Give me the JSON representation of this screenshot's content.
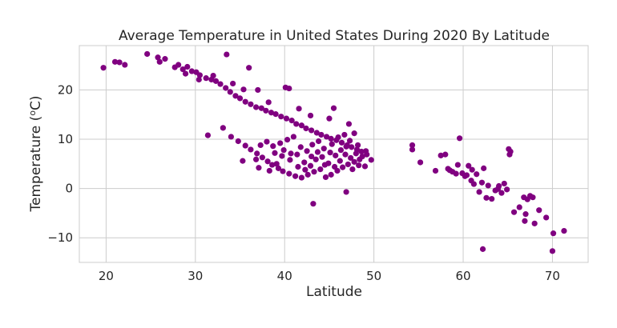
{
  "chart_data": {
    "type": "scatter",
    "title": "Average Temperature in United States During 2020 By Latitude",
    "xlabel": "Latitude",
    "ylabel": "Temperature (",
    "ylabel_super": "o",
    "ylabel_unit": "C)",
    "xlim": [
      17,
      74
    ],
    "ylim": [
      -15,
      29
    ],
    "xticks": [
      20,
      30,
      40,
      50,
      60,
      70
    ],
    "yticks": [
      -10,
      0,
      10,
      20
    ],
    "ytick_labels": [
      "−10",
      "0",
      "10",
      "20"
    ],
    "grid": true,
    "color": "#800080",
    "series": [
      {
        "points": [
          [
            19.7,
            24.5
          ],
          [
            21.0,
            25.7
          ],
          [
            21.5,
            25.6
          ],
          [
            22.1,
            25.1
          ],
          [
            24.6,
            27.3
          ],
          [
            25.8,
            26.6
          ],
          [
            26.0,
            25.7
          ],
          [
            26.6,
            26.3
          ],
          [
            27.7,
            24.6
          ],
          [
            28.1,
            25.1
          ],
          [
            28.6,
            24.2
          ],
          [
            29.1,
            24.7
          ],
          [
            29.6,
            23.8
          ],
          [
            30.1,
            23.6
          ],
          [
            30.5,
            23.0
          ],
          [
            31.2,
            22.4
          ],
          [
            31.8,
            22.1
          ],
          [
            32.3,
            21.8
          ],
          [
            32.8,
            21.2
          ],
          [
            33.4,
            20.4
          ],
          [
            33.9,
            19.6
          ],
          [
            34.5,
            18.8
          ],
          [
            35.0,
            18.3
          ],
          [
            35.6,
            17.6
          ],
          [
            36.2,
            17.1
          ],
          [
            36.8,
            16.5
          ],
          [
            37.4,
            16.3
          ],
          [
            37.9,
            15.8
          ],
          [
            38.5,
            15.4
          ],
          [
            39.0,
            15.1
          ],
          [
            39.6,
            14.6
          ],
          [
            40.2,
            14.2
          ],
          [
            40.8,
            13.8
          ],
          [
            41.3,
            13.1
          ],
          [
            41.9,
            12.8
          ],
          [
            42.4,
            12.2
          ],
          [
            43.0,
            11.8
          ],
          [
            43.6,
            11.3
          ],
          [
            44.1,
            10.9
          ],
          [
            44.7,
            10.5
          ],
          [
            45.2,
            10.1
          ],
          [
            45.8,
            9.8
          ],
          [
            46.4,
            9.3
          ],
          [
            47.0,
            8.8
          ],
          [
            47.5,
            8.4
          ],
          [
            48.1,
            7.9
          ],
          [
            48.6,
            7.5
          ],
          [
            49.2,
            6.9
          ],
          [
            49.7,
            5.8
          ],
          [
            28.9,
            23.3
          ],
          [
            30.4,
            22.1
          ],
          [
            32.0,
            22.9
          ],
          [
            33.5,
            27.2
          ],
          [
            34.2,
            21.3
          ],
          [
            35.4,
            20.1
          ],
          [
            36.0,
            24.5
          ],
          [
            37.0,
            20.0
          ],
          [
            38.2,
            17.5
          ],
          [
            40.1,
            20.5
          ],
          [
            40.5,
            20.3
          ],
          [
            41.6,
            16.2
          ],
          [
            42.9,
            14.8
          ],
          [
            45.0,
            14.2
          ],
          [
            45.5,
            16.3
          ],
          [
            47.2,
            13.1
          ],
          [
            47.8,
            11.2
          ],
          [
            33.1,
            12.3
          ],
          [
            34.0,
            10.5
          ],
          [
            34.8,
            9.6
          ],
          [
            35.6,
            8.7
          ],
          [
            36.2,
            7.9
          ],
          [
            36.9,
            7.1
          ],
          [
            37.5,
            6.3
          ],
          [
            38.1,
            5.5
          ],
          [
            38.6,
            4.8
          ],
          [
            39.3,
            4.1
          ],
          [
            39.8,
            3.5
          ],
          [
            40.5,
            3.0
          ],
          [
            41.2,
            2.5
          ],
          [
            41.9,
            2.2
          ],
          [
            42.6,
            2.8
          ],
          [
            43.3,
            3.4
          ],
          [
            44.0,
            3.9
          ],
          [
            44.6,
            2.3
          ],
          [
            45.2,
            2.8
          ],
          [
            45.9,
            3.6
          ],
          [
            46.5,
            4.3
          ],
          [
            47.1,
            4.9
          ],
          [
            47.8,
            5.4
          ],
          [
            48.4,
            5.9
          ],
          [
            49.0,
            4.5
          ],
          [
            31.4,
            10.8
          ],
          [
            35.3,
            5.6
          ],
          [
            36.8,
            5.9
          ],
          [
            38.7,
            8.6
          ],
          [
            39.5,
            9.2
          ],
          [
            40.3,
            9.9
          ],
          [
            41.0,
            10.5
          ],
          [
            41.8,
            8.4
          ],
          [
            42.5,
            7.6
          ],
          [
            43.1,
            8.9
          ],
          [
            43.8,
            9.6
          ],
          [
            44.4,
            8.1
          ],
          [
            45.1,
            7.3
          ],
          [
            45.7,
            6.7
          ],
          [
            46.3,
            7.8
          ],
          [
            46.9,
            8.5
          ],
          [
            47.4,
            6.2
          ],
          [
            48.0,
            7.1
          ],
          [
            48.7,
            6.5
          ],
          [
            37.3,
            8.8
          ],
          [
            38.0,
            9.5
          ],
          [
            38.9,
            7.2
          ],
          [
            39.7,
            6.6
          ],
          [
            40.6,
            5.8
          ],
          [
            41.4,
            6.9
          ],
          [
            42.2,
            5.3
          ],
          [
            42.9,
            4.6
          ],
          [
            43.5,
            5.9
          ],
          [
            44.2,
            6.4
          ],
          [
            44.9,
            5.1
          ],
          [
            45.6,
            4.4
          ],
          [
            46.2,
            5.6
          ],
          [
            46.8,
            6.9
          ],
          [
            47.6,
            3.9
          ],
          [
            48.3,
            4.7
          ],
          [
            37.1,
            4.2
          ],
          [
            38.3,
            3.6
          ],
          [
            39.1,
            5.0
          ],
          [
            39.9,
            7.8
          ],
          [
            40.7,
            7.1
          ],
          [
            41.5,
            4.4
          ],
          [
            42.3,
            3.8
          ],
          [
            43.0,
            6.5
          ],
          [
            43.7,
            7.4
          ],
          [
            44.5,
            4.8
          ],
          [
            45.3,
            9.0
          ],
          [
            46.0,
            10.4
          ],
          [
            46.7,
            10.9
          ],
          [
            47.3,
            9.7
          ],
          [
            48.2,
            8.8
          ],
          [
            49.1,
            7.6
          ],
          [
            43.2,
            -3.1
          ],
          [
            46.9,
            -0.7
          ],
          [
            54.3,
            8.8
          ],
          [
            54.3,
            7.9
          ],
          [
            55.2,
            5.3
          ],
          [
            56.9,
            3.6
          ],
          [
            57.5,
            6.7
          ],
          [
            58.0,
            6.9
          ],
          [
            58.3,
            4.0
          ],
          [
            58.8,
            3.4
          ],
          [
            59.4,
            4.8
          ],
          [
            59.6,
            10.2
          ],
          [
            59.9,
            3.1
          ],
          [
            60.2,
            2.5
          ],
          [
            60.6,
            4.6
          ],
          [
            60.9,
            1.6
          ],
          [
            61.2,
            0.9
          ],
          [
            61.5,
            2.9
          ],
          [
            61.8,
            -0.7
          ],
          [
            62.1,
            1.2
          ],
          [
            62.3,
            4.1
          ],
          [
            62.6,
            -1.9
          ],
          [
            62.8,
            0.6
          ],
          [
            63.2,
            -2.1
          ],
          [
            63.6,
            -0.4
          ],
          [
            64.0,
            0.5
          ],
          [
            64.3,
            -0.9
          ],
          [
            64.6,
            1.0
          ],
          [
            64.9,
            -0.2
          ],
          [
            65.2,
            6.9
          ],
          [
            65.1,
            8.0
          ],
          [
            65.3,
            7.5
          ],
          [
            65.7,
            -4.8
          ],
          [
            66.3,
            -3.8
          ],
          [
            66.8,
            -1.8
          ],
          [
            67.2,
            -2.2
          ],
          [
            67.5,
            -1.5
          ],
          [
            67.0,
            -5.2
          ],
          [
            68.0,
            -7.1
          ],
          [
            68.5,
            -4.4
          ],
          [
            69.3,
            -5.9
          ],
          [
            70.1,
            -9.1
          ],
          [
            70.0,
            -12.7
          ],
          [
            71.3,
            -8.6
          ],
          [
            62.2,
            -12.3
          ],
          [
            66.9,
            -6.6
          ],
          [
            67.8,
            -1.8
          ],
          [
            63.9,
            -0.1
          ],
          [
            60.4,
            2.7
          ],
          [
            61.0,
            3.8
          ],
          [
            59.2,
            3.0
          ],
          [
            58.5,
            3.7
          ]
        ]
      }
    ]
  }
}
